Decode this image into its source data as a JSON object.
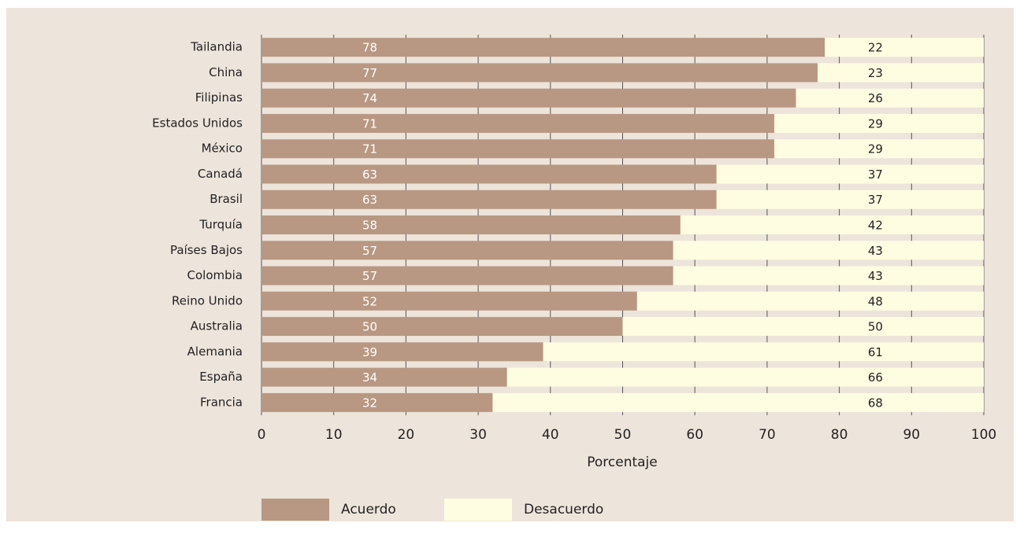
{
  "chart_data": {
    "type": "stacked_barh",
    "categories": [
      "Tailandia",
      "China",
      "Filipinas",
      "Estados Unidos",
      "México",
      "Canadá",
      "Brasil",
      "Turquía",
      "Países Bajos",
      "Colombia",
      "Reino Unido",
      "Australia",
      "Alemania",
      "España",
      "Francia"
    ],
    "series": [
      {
        "name": "Acuerdo",
        "color": "#b89882",
        "values": [
          78,
          77,
          74,
          71,
          71,
          63,
          63,
          58,
          57,
          57,
          52,
          50,
          39,
          34,
          32
        ]
      },
      {
        "name": "Desacuerdo",
        "color": "#fffde1",
        "values": [
          22,
          23,
          26,
          29,
          29,
          37,
          37,
          42,
          43,
          43,
          48,
          50,
          61,
          66,
          68
        ]
      }
    ],
    "xlabel": "Porcentaje",
    "xlim": [
      0,
      100
    ],
    "xticks": [
      0,
      10,
      20,
      30,
      40,
      50,
      60,
      70,
      80,
      90,
      100
    ],
    "grid": true,
    "legend": "bottom"
  }
}
